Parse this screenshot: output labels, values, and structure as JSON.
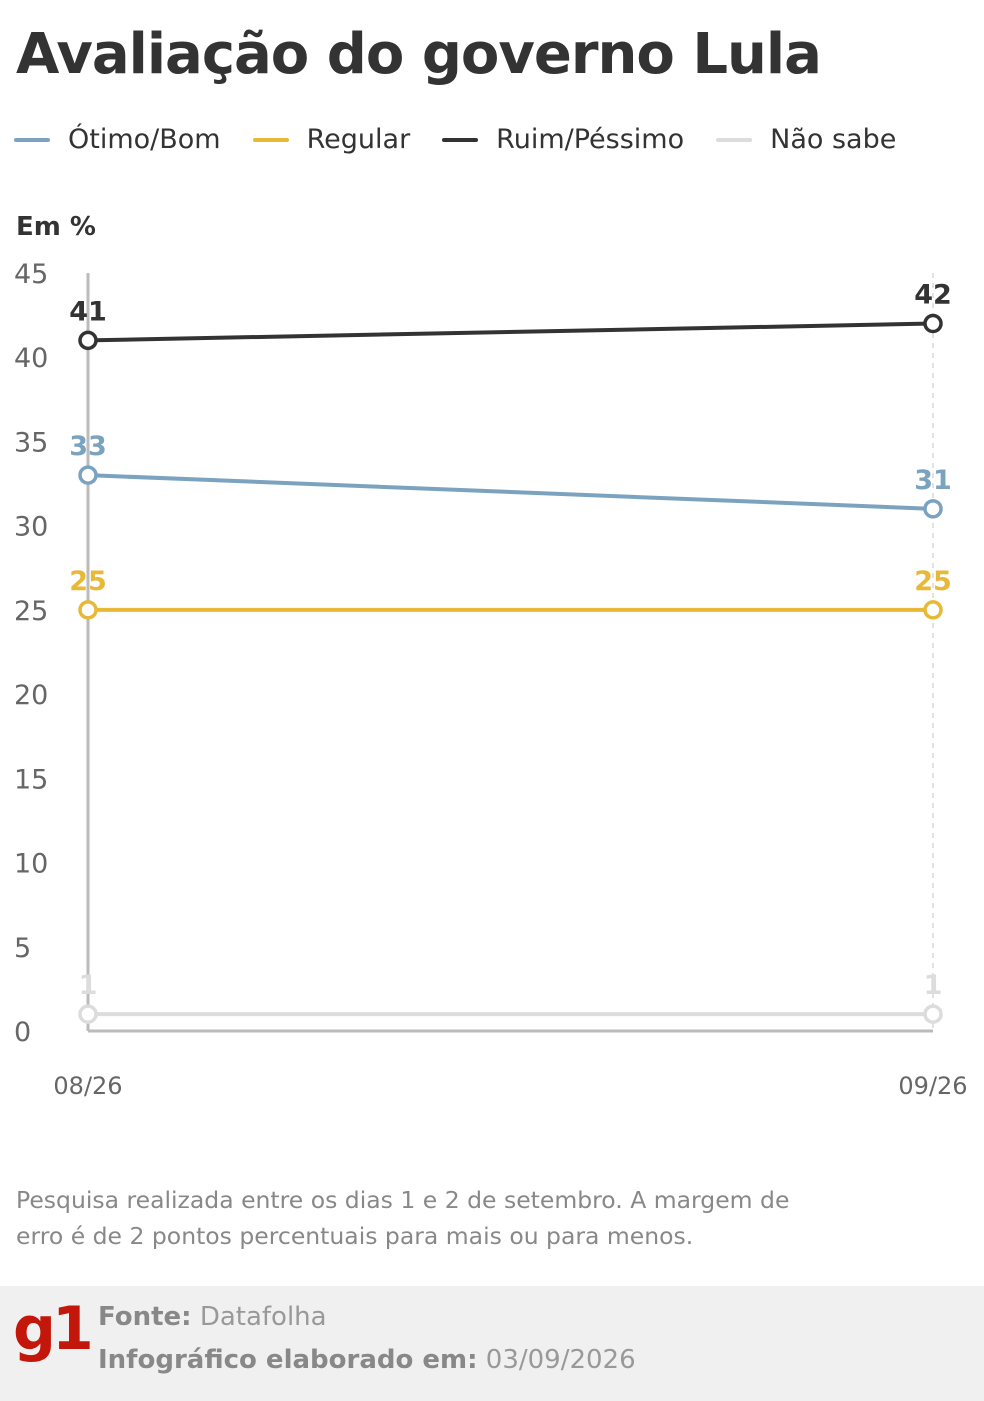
{
  "header": {
    "title": "Avaliação do governo Lula",
    "unit_label": "Em %"
  },
  "legend": [
    {
      "label": "Ótimo/Bom",
      "color": "#7ba3bf"
    },
    {
      "label": "Regular",
      "color": "#e8b936"
    },
    {
      "label": "Ruim/Péssimo",
      "color": "#333333"
    },
    {
      "label": "Não sabe",
      "color": "#dcdcdc"
    }
  ],
  "chart_data": {
    "type": "line",
    "x": [
      "08/26",
      "09/26"
    ],
    "ylim": [
      0,
      45
    ],
    "yticks": [
      0,
      5,
      10,
      15,
      20,
      25,
      30,
      35,
      40,
      45
    ],
    "series": [
      {
        "name": "Ótimo/Bom",
        "color": "#7ba3bf",
        "values": [
          33,
          31
        ]
      },
      {
        "name": "Regular",
        "color": "#e8b936",
        "values": [
          25,
          25
        ]
      },
      {
        "name": "Ruim/Péssimo",
        "color": "#333333",
        "values": [
          41,
          42
        ]
      },
      {
        "name": "Não sabe",
        "color": "#dcdcdc",
        "values": [
          1,
          1
        ]
      }
    ],
    "grid": false
  },
  "note": "Pesquisa realizada entre os dias 1 e 2 de setembro. A margem de erro é de 2 pontos percentuais para mais ou para menos.",
  "footer": {
    "logo": "g1",
    "source_label": "Fonte:",
    "source_value": "Datafolha",
    "date_label": "Infográfico elaborado em:",
    "date_value": "03/09/2026"
  }
}
